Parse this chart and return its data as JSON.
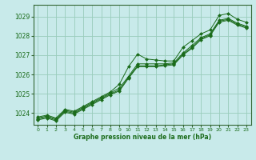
{
  "xlabel": "Graphe pression niveau de la mer (hPa)",
  "xlim": [
    -0.5,
    23.5
  ],
  "ylim": [
    1023.4,
    1029.6
  ],
  "yticks": [
    1024,
    1025,
    1026,
    1027,
    1028,
    1029
  ],
  "xticks": [
    0,
    1,
    2,
    3,
    4,
    5,
    6,
    7,
    8,
    9,
    10,
    11,
    12,
    13,
    14,
    15,
    16,
    17,
    18,
    19,
    20,
    21,
    22,
    23
  ],
  "bg_color": "#c8eaea",
  "grid_color": "#99ccbb",
  "line_color": "#1a6b1a",
  "series": [
    [
      1023.8,
      1023.9,
      1023.75,
      1024.2,
      1024.1,
      1024.35,
      1024.6,
      1024.85,
      1025.1,
      1025.5,
      1026.4,
      1027.05,
      1026.8,
      1026.75,
      1026.7,
      1026.7,
      1027.4,
      1027.75,
      1028.1,
      1028.3,
      1029.05,
      1029.15,
      1028.85,
      1028.7
    ],
    [
      1023.75,
      1023.85,
      1023.7,
      1024.15,
      1024.05,
      1024.3,
      1024.55,
      1024.8,
      1025.05,
      1025.3,
      1025.9,
      1026.55,
      1026.55,
      1026.55,
      1026.55,
      1026.6,
      1027.1,
      1027.5,
      1027.9,
      1028.1,
      1028.8,
      1028.9,
      1028.65,
      1028.5
    ],
    [
      1023.7,
      1023.8,
      1023.65,
      1024.1,
      1024.0,
      1024.25,
      1024.5,
      1024.75,
      1025.0,
      1025.2,
      1025.85,
      1026.45,
      1026.45,
      1026.45,
      1026.5,
      1026.55,
      1027.05,
      1027.4,
      1027.85,
      1028.05,
      1028.75,
      1028.85,
      1028.6,
      1028.45
    ],
    [
      1023.65,
      1023.75,
      1023.6,
      1024.05,
      1023.95,
      1024.2,
      1024.45,
      1024.7,
      1024.95,
      1025.15,
      1025.8,
      1026.4,
      1026.4,
      1026.4,
      1026.45,
      1026.5,
      1027.0,
      1027.35,
      1027.8,
      1028.0,
      1028.7,
      1028.8,
      1028.55,
      1028.4
    ]
  ]
}
